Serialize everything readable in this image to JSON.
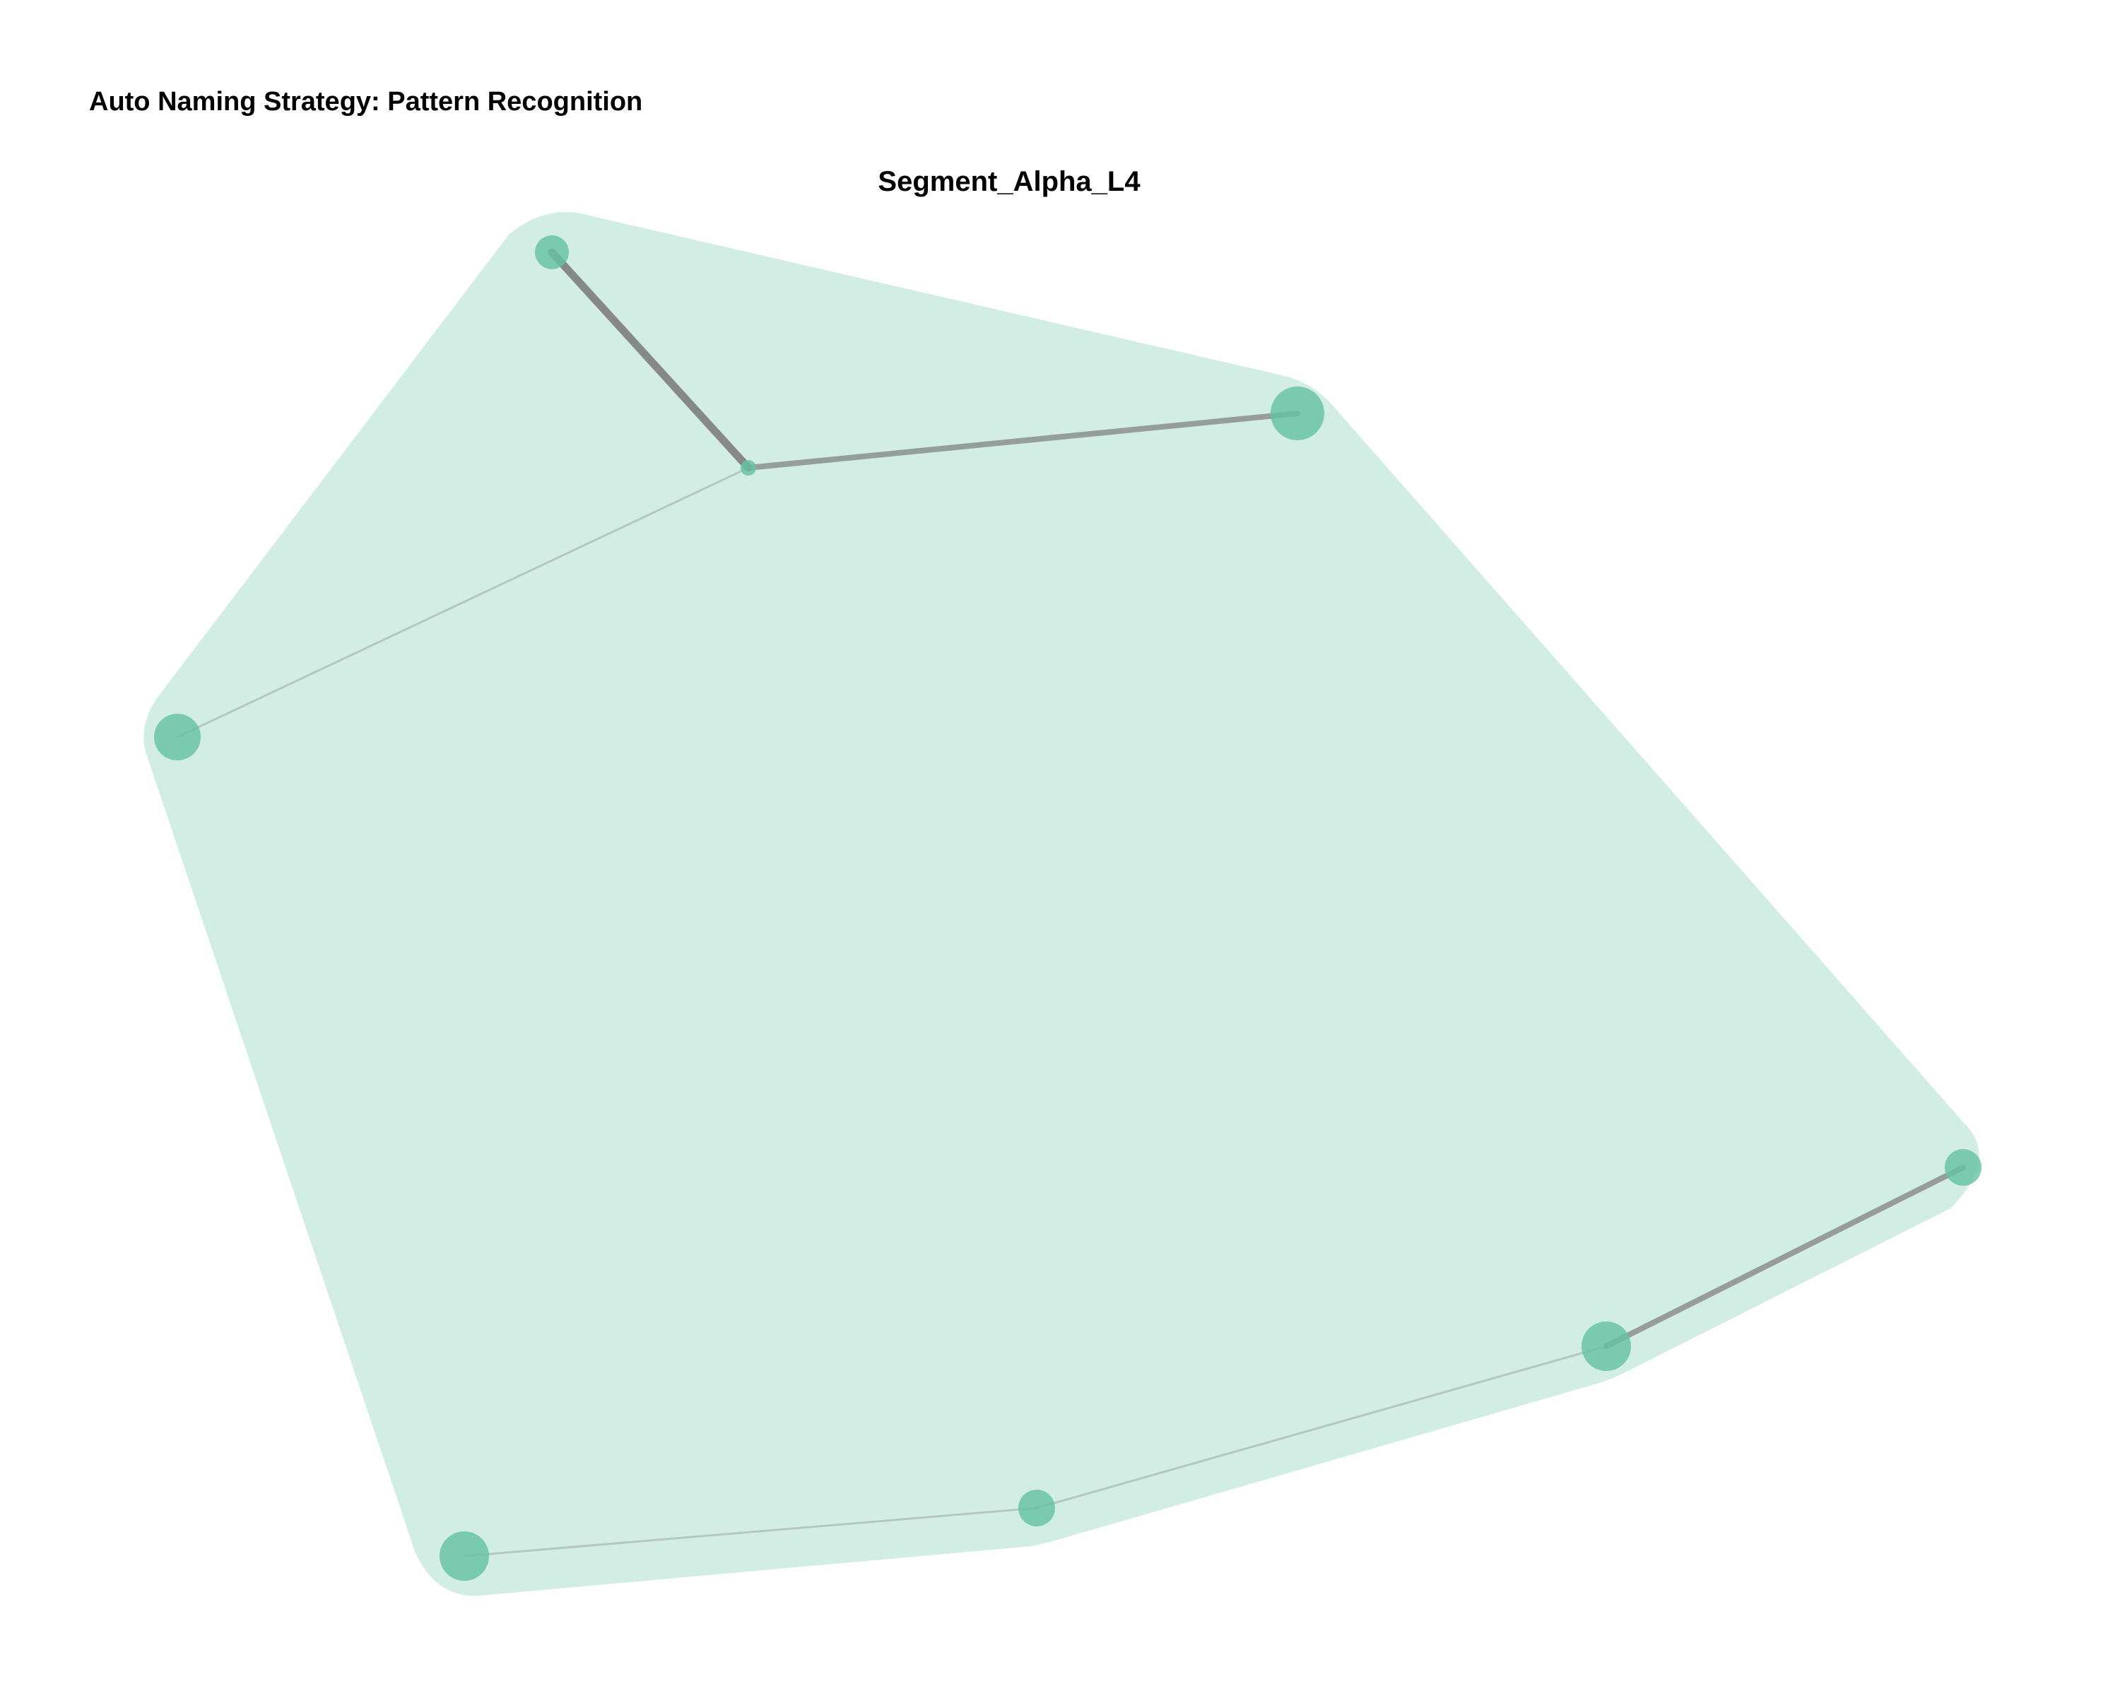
{
  "figure": {
    "title": "Auto Naming Strategy: Pattern Recognition"
  },
  "cluster": {
    "label": "Segment_Alpha_L4",
    "fill_color": "#66c2a5",
    "node_color": "#66c2a5",
    "edge_color": "#808080"
  },
  "nodes": [
    {
      "id": "n1"
    },
    {
      "id": "n2"
    },
    {
      "id": "n3"
    },
    {
      "id": "n4"
    },
    {
      "id": "n5"
    },
    {
      "id": "n6"
    },
    {
      "id": "n7"
    },
    {
      "id": "n8"
    }
  ],
  "edges": [
    {
      "from": "n1",
      "to": "n4",
      "weight": "heavy"
    },
    {
      "from": "n4",
      "to": "n2",
      "weight": "medium"
    },
    {
      "from": "n4",
      "to": "n3",
      "weight": "light"
    },
    {
      "from": "n8",
      "to": "n7",
      "weight": "medium"
    },
    {
      "from": "n7",
      "to": "n6",
      "weight": "light"
    },
    {
      "from": "n6",
      "to": "n5",
      "weight": "light"
    }
  ]
}
